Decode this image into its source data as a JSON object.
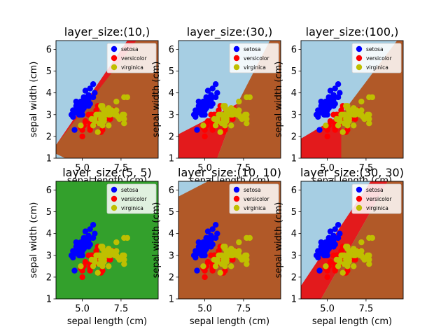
{
  "colors": {
    "setosa_region": "#a6cee3",
    "versicolor_region": "#e31a1c",
    "virginica_region": "#b15928",
    "uniform_region": "#33a02c",
    "setosa_point": "#0000ff",
    "versicolor_point": "#ff0000",
    "virginica_point": "#bfbf00"
  },
  "chart_data": [
    {
      "type": "scatter",
      "title": "layer_size:(10,)",
      "xlabel": "sepal length (cm)",
      "ylabel": "sepal width (cm)",
      "xlim": [
        3.3,
        9.9
      ],
      "ylim": [
        1.0,
        6.4
      ],
      "xticks": [
        "5.0",
        "7.5"
      ],
      "yticks": [
        "1",
        "2",
        "3",
        "4",
        "5",
        "6"
      ],
      "legend_position": "top-right",
      "legend": [
        "setosa",
        "versicolor",
        "virginica"
      ],
      "decision_boundary": {
        "background": "setosa",
        "bands": [
          {
            "class": "versicolor",
            "polygon": [
              [
                3.3,
                1.2
              ],
              [
                3.3,
                1.6
              ],
              [
                7.9,
                6.4
              ],
              [
                8.5,
                6.4
              ]
            ]
          },
          {
            "class": "virginica",
            "polygon": [
              [
                3.9,
                1.0
              ],
              [
                9.9,
                1.0
              ],
              [
                9.9,
                6.4
              ],
              [
                8.5,
                6.4
              ],
              [
                3.3,
                1.6
              ],
              [
                3.3,
                1.2
              ]
            ]
          }
        ]
      }
    },
    {
      "type": "scatter",
      "title": "layer_size:(30,)",
      "xlabel": "sepal length (cm)",
      "ylabel": "sepal width (cm)",
      "xlim": [
        3.3,
        9.9
      ],
      "ylim": [
        1.0,
        6.4
      ],
      "xticks": [
        "5.0",
        "7.5"
      ],
      "yticks": [
        "1",
        "2",
        "3",
        "4",
        "5",
        "6"
      ],
      "legend_position": "top-right",
      "legend": [
        "setosa",
        "versicolor",
        "virginica"
      ],
      "decision_boundary": {
        "background": "setosa",
        "bands": [
          {
            "class": "versicolor",
            "polygon": [
              [
                3.3,
                1.0
              ],
              [
                5.9,
                1.0
              ],
              [
                5.9,
                1.0
              ],
              [
                3.3,
                1.0
              ]
            ]
          },
          {
            "class": "versicolor",
            "polygon": [
              [
                3.3,
                1.0
              ],
              [
                5.8,
                1.0
              ],
              [
                7.1,
                3.5
              ],
              [
                3.3,
                2.1
              ]
            ]
          },
          {
            "class": "virginica",
            "polygon": [
              [
                5.8,
                1.0
              ],
              [
                9.9,
                1.0
              ],
              [
                9.9,
                6.4
              ],
              [
                9.2,
                6.4
              ],
              [
                7.1,
                3.5
              ]
            ]
          }
        ]
      }
    },
    {
      "type": "scatter",
      "title": "layer_size:(100,)",
      "xlabel": "sepal length (cm)",
      "ylabel": "sepal width (cm)",
      "xlim": [
        3.3,
        9.9
      ],
      "ylim": [
        1.0,
        6.4
      ],
      "xticks": [
        "5.0",
        "7.5"
      ],
      "yticks": [
        "1",
        "2",
        "3",
        "4",
        "5",
        "6"
      ],
      "legend_position": "top-right",
      "legend": [
        "setosa",
        "versicolor",
        "virginica"
      ],
      "decision_boundary": {
        "background": "setosa",
        "bands": [
          {
            "class": "versicolor",
            "polygon": [
              [
                3.3,
                1.0
              ],
              [
                5.9,
                1.0
              ],
              [
                5.9,
                3.0
              ],
              [
                3.3,
                1.9
              ]
            ]
          },
          {
            "class": "virginica",
            "polygon": [
              [
                5.9,
                1.0
              ],
              [
                9.9,
                1.0
              ],
              [
                9.9,
                6.4
              ],
              [
                9.5,
                6.4
              ],
              [
                5.9,
                3.0
              ]
            ]
          }
        ]
      }
    },
    {
      "type": "scatter",
      "title": "layer_size:(5, 5)",
      "xlabel": "sepal length (cm)",
      "ylabel": "sepal width (cm)",
      "xlim": [
        3.3,
        9.9
      ],
      "ylim": [
        1.0,
        6.4
      ],
      "xticks": [
        "5.0",
        "7.5"
      ],
      "yticks": [
        "1",
        "2",
        "3",
        "4",
        "5",
        "6"
      ],
      "legend_position": "top-right",
      "legend": [
        "setosa",
        "versicolor",
        "virginica"
      ],
      "decision_boundary": {
        "background": "uniform",
        "bands": []
      }
    },
    {
      "type": "scatter",
      "title": "layer_size:(10, 10)",
      "xlabel": "sepal length (cm)",
      "ylabel": "sepal width (cm)",
      "xlim": [
        3.3,
        9.9
      ],
      "ylim": [
        1.0,
        6.4
      ],
      "xticks": [
        "5.0",
        "7.5"
      ],
      "yticks": [
        "1",
        "2",
        "3",
        "4",
        "5",
        "6"
      ],
      "legend_position": "top-right",
      "legend": [
        "setosa",
        "versicolor",
        "virginica"
      ],
      "decision_boundary": {
        "background": "virginica",
        "bands": [
          {
            "class": "setosa",
            "polygon": [
              [
                3.3,
                5.7
              ],
              [
                3.3,
                6.4
              ],
              [
                5.2,
                6.4
              ]
            ]
          }
        ]
      }
    },
    {
      "type": "scatter",
      "title": "layer_size:(30, 30)",
      "xlabel": "sepal length (cm)",
      "ylabel": "sepal width (cm)",
      "xlim": [
        3.3,
        9.9
      ],
      "ylim": [
        1.0,
        6.4
      ],
      "xticks": [
        "5.0",
        "7.5"
      ],
      "yticks": [
        "1",
        "2",
        "3",
        "4",
        "5",
        "6"
      ],
      "legend_position": "top-right",
      "legend": [
        "setosa",
        "versicolor",
        "virginica"
      ],
      "decision_boundary": {
        "background": "setosa",
        "bands": [
          {
            "class": "versicolor",
            "polygon": [
              [
                3.8,
                1.0
              ],
              [
                4.6,
                1.0
              ],
              [
                8.9,
                6.4
              ],
              [
                7.8,
                6.4
              ],
              [
                3.3,
                1.6
              ],
              [
                3.3,
                1.0
              ]
            ]
          },
          {
            "class": "virginica",
            "polygon": [
              [
                4.6,
                1.0
              ],
              [
                9.9,
                1.0
              ],
              [
                9.9,
                6.4
              ],
              [
                8.9,
                6.4
              ]
            ]
          }
        ]
      }
    }
  ],
  "series": [
    {
      "name": "setosa",
      "points": [
        [
          5.1,
          3.5
        ],
        [
          4.9,
          3.0
        ],
        [
          4.7,
          3.2
        ],
        [
          4.6,
          3.1
        ],
        [
          5.0,
          3.6
        ],
        [
          5.4,
          3.9
        ],
        [
          4.6,
          3.4
        ],
        [
          5.0,
          3.4
        ],
        [
          4.4,
          2.9
        ],
        [
          4.9,
          3.1
        ],
        [
          5.4,
          3.7
        ],
        [
          4.8,
          3.4
        ],
        [
          4.8,
          3.0
        ],
        [
          4.3,
          3.0
        ],
        [
          5.8,
          4.0
        ],
        [
          5.7,
          4.4
        ],
        [
          5.4,
          3.9
        ],
        [
          5.1,
          3.5
        ],
        [
          5.7,
          3.8
        ],
        [
          5.1,
          3.8
        ],
        [
          5.4,
          3.4
        ],
        [
          5.1,
          3.7
        ],
        [
          4.6,
          3.6
        ],
        [
          5.1,
          3.3
        ],
        [
          4.8,
          3.4
        ],
        [
          5.0,
          3.0
        ],
        [
          5.0,
          3.4
        ],
        [
          5.2,
          3.5
        ],
        [
          5.2,
          3.4
        ],
        [
          4.7,
          3.2
        ],
        [
          4.8,
          3.1
        ],
        [
          5.4,
          3.4
        ],
        [
          5.2,
          4.1
        ],
        [
          5.5,
          4.2
        ],
        [
          4.9,
          3.1
        ],
        [
          5.0,
          3.2
        ],
        [
          5.5,
          3.5
        ],
        [
          4.9,
          3.6
        ],
        [
          4.4,
          3.0
        ],
        [
          5.1,
          3.4
        ],
        [
          5.0,
          3.5
        ],
        [
          4.5,
          2.3
        ],
        [
          4.4,
          3.2
        ],
        [
          5.0,
          3.5
        ],
        [
          5.1,
          3.8
        ],
        [
          4.8,
          3.0
        ],
        [
          5.1,
          3.8
        ],
        [
          4.6,
          3.2
        ],
        [
          5.3,
          3.7
        ],
        [
          5.0,
          3.3
        ]
      ]
    },
    {
      "name": "versicolor",
      "points": [
        [
          7.0,
          3.2
        ],
        [
          6.4,
          3.2
        ],
        [
          6.9,
          3.1
        ],
        [
          5.5,
          2.3
        ],
        [
          6.5,
          2.8
        ],
        [
          5.7,
          2.8
        ],
        [
          6.3,
          3.3
        ],
        [
          4.9,
          2.4
        ],
        [
          6.6,
          2.9
        ],
        [
          5.2,
          2.7
        ],
        [
          5.0,
          2.0
        ],
        [
          5.9,
          3.0
        ],
        [
          6.0,
          2.2
        ],
        [
          6.1,
          2.9
        ],
        [
          5.6,
          2.9
        ],
        [
          6.7,
          3.1
        ],
        [
          5.6,
          3.0
        ],
        [
          5.8,
          2.7
        ],
        [
          6.2,
          2.2
        ],
        [
          5.6,
          2.5
        ],
        [
          5.9,
          3.2
        ],
        [
          6.1,
          2.8
        ],
        [
          6.3,
          2.5
        ],
        [
          6.1,
          2.8
        ],
        [
          6.4,
          2.9
        ],
        [
          6.6,
          3.0
        ],
        [
          6.8,
          2.8
        ],
        [
          6.7,
          3.0
        ],
        [
          6.0,
          2.9
        ],
        [
          5.7,
          2.6
        ],
        [
          5.5,
          2.4
        ],
        [
          5.5,
          2.4
        ],
        [
          5.8,
          2.7
        ],
        [
          6.0,
          2.7
        ],
        [
          5.4,
          3.0
        ],
        [
          6.0,
          3.4
        ],
        [
          6.7,
          3.1
        ],
        [
          6.3,
          2.3
        ],
        [
          5.6,
          3.0
        ],
        [
          5.5,
          2.5
        ],
        [
          5.5,
          2.6
        ],
        [
          6.1,
          3.0
        ],
        [
          5.8,
          2.6
        ],
        [
          5.0,
          2.3
        ],
        [
          5.6,
          2.7
        ],
        [
          5.7,
          3.0
        ],
        [
          5.7,
          2.9
        ],
        [
          6.2,
          2.9
        ],
        [
          5.1,
          2.5
        ],
        [
          5.7,
          2.8
        ]
      ]
    },
    {
      "name": "virginica",
      "points": [
        [
          6.3,
          3.3
        ],
        [
          5.8,
          2.7
        ],
        [
          7.1,
          3.0
        ],
        [
          6.3,
          2.9
        ],
        [
          6.5,
          3.0
        ],
        [
          7.6,
          3.0
        ],
        [
          4.9,
          2.5
        ],
        [
          7.3,
          2.9
        ],
        [
          6.7,
          2.5
        ],
        [
          7.2,
          3.6
        ],
        [
          6.5,
          3.2
        ],
        [
          6.4,
          2.7
        ],
        [
          6.8,
          3.0
        ],
        [
          5.7,
          2.5
        ],
        [
          5.8,
          2.8
        ],
        [
          6.4,
          3.2
        ],
        [
          6.5,
          3.0
        ],
        [
          7.7,
          3.8
        ],
        [
          7.7,
          2.6
        ],
        [
          6.0,
          2.2
        ],
        [
          6.9,
          3.2
        ],
        [
          5.6,
          2.8
        ],
        [
          7.7,
          2.8
        ],
        [
          6.3,
          2.7
        ],
        [
          6.7,
          3.3
        ],
        [
          7.2,
          3.2
        ],
        [
          6.2,
          2.8
        ],
        [
          6.1,
          3.0
        ],
        [
          6.4,
          2.8
        ],
        [
          7.2,
          3.0
        ],
        [
          7.4,
          2.8
        ],
        [
          7.9,
          3.8
        ],
        [
          6.4,
          2.8
        ],
        [
          6.3,
          2.8
        ],
        [
          6.1,
          2.6
        ],
        [
          7.7,
          3.0
        ],
        [
          6.3,
          3.4
        ],
        [
          6.4,
          3.1
        ],
        [
          6.0,
          3.0
        ],
        [
          6.9,
          3.1
        ],
        [
          6.7,
          3.1
        ],
        [
          6.9,
          3.1
        ],
        [
          5.8,
          2.7
        ],
        [
          6.8,
          3.2
        ],
        [
          6.7,
          3.3
        ],
        [
          6.7,
          3.0
        ],
        [
          6.3,
          2.5
        ],
        [
          6.5,
          3.0
        ],
        [
          6.2,
          3.4
        ],
        [
          5.9,
          3.0
        ]
      ]
    }
  ]
}
